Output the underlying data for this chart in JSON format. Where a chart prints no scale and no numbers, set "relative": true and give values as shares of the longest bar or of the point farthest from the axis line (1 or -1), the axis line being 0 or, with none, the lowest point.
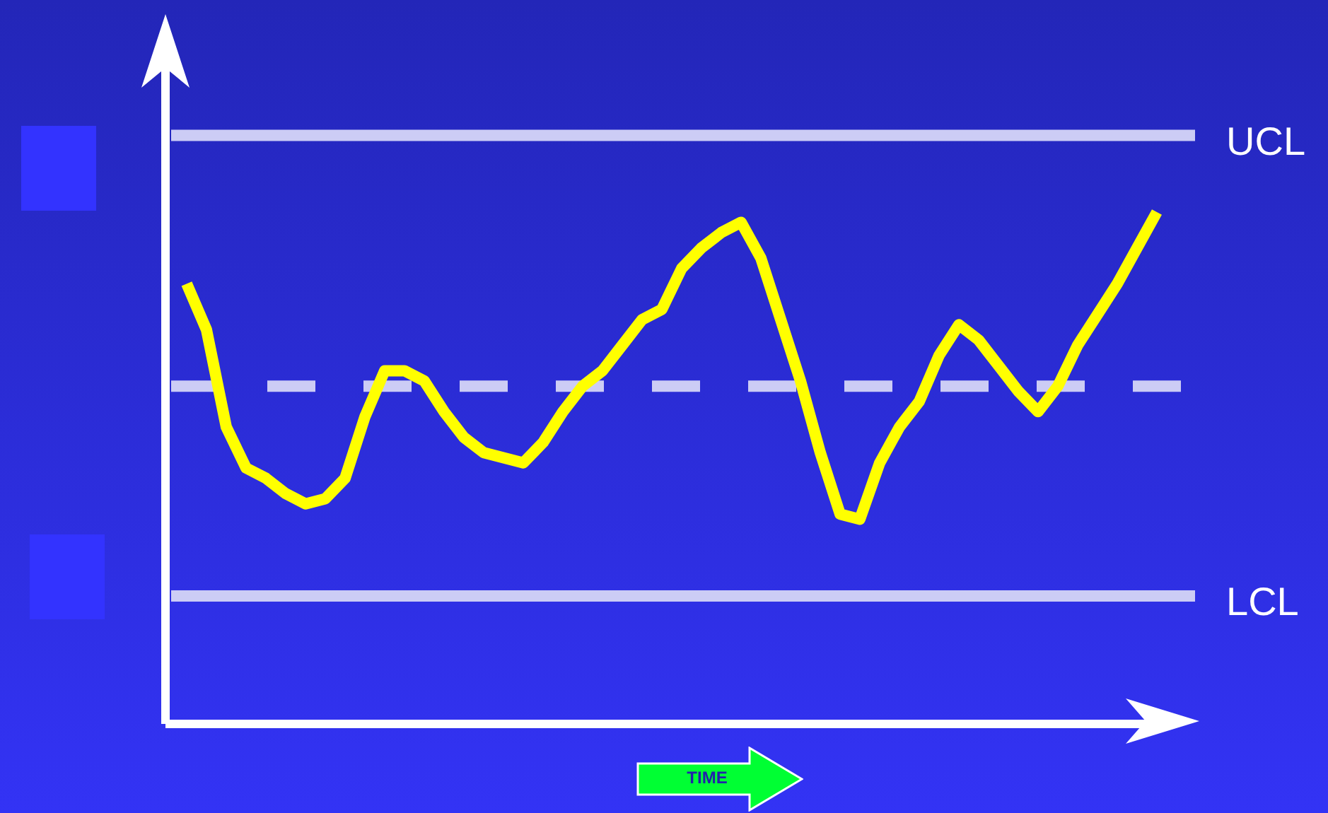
{
  "chart_data": {
    "type": "line",
    "relative": true,
    "xlabel": "TIME",
    "categories": [
      null,
      null,
      null,
      null,
      null,
      null,
      null,
      null,
      null,
      null,
      null,
      null,
      null,
      null,
      null,
      null,
      null,
      null,
      null,
      null,
      null,
      null,
      null,
      null,
      null,
      null,
      null,
      null,
      null,
      null,
      null,
      null,
      null,
      null,
      null,
      null,
      null,
      null,
      null,
      null,
      null,
      null,
      null,
      null,
      null,
      null,
      null,
      null,
      null,
      null
    ],
    "series": [
      {
        "color": "#ffff00",
        "values": [
          0.86,
          0.77,
          0.58,
          0.5,
          0.48,
          0.45,
          0.43,
          0.44,
          0.48,
          0.6,
          0.69,
          0.69,
          0.67,
          0.61,
          0.56,
          0.53,
          0.52,
          0.51,
          0.55,
          0.61,
          0.66,
          0.69,
          0.74,
          0.79,
          0.81,
          0.89,
          0.93,
          0.96,
          0.98,
          0.91,
          0.79,
          0.67,
          0.53,
          0.41,
          0.4,
          0.51,
          0.58,
          0.63,
          0.72,
          0.78,
          0.75,
          0.7,
          0.65,
          0.61,
          0.66,
          0.74,
          0.8,
          0.86,
          0.93,
          1.0
        ]
      }
    ],
    "ref_lines": [
      {
        "axis": "y",
        "value": 1.15,
        "label": "UCL",
        "color": "#ccccf5",
        "line_style": "solid"
      },
      {
        "axis": "y",
        "value": 0.66,
        "color": "#ccccf5",
        "line_style": "dashed"
      },
      {
        "axis": "y",
        "value": 0.25,
        "label": "LCL",
        "color": "#ccccf5",
        "line_style": "solid"
      }
    ],
    "marker": "none",
    "line_style": "solid",
    "legend": false
  }
}
